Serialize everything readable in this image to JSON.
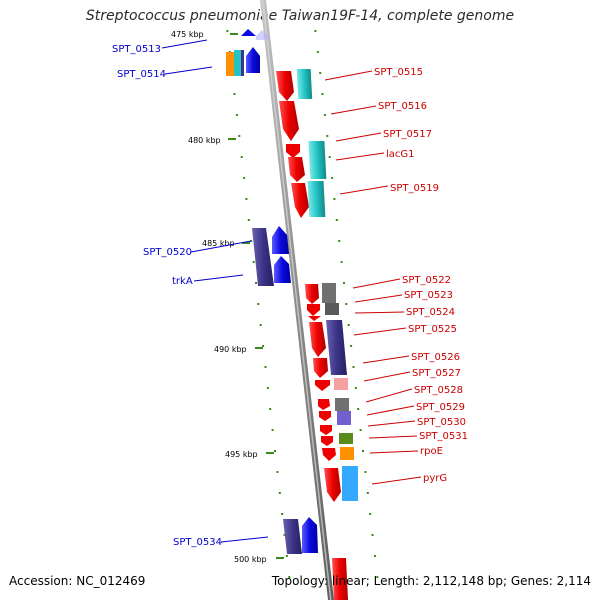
{
  "title": "Streptococcus pneumoniae Taiwan19F-14, complete genome",
  "accession": "Accession: NC_012469",
  "stats": "Topology: linear; Length: 2,112,148 bp; Genes: 2,114",
  "colors": {
    "backbone": "#8c8c8c",
    "tick": "#3a8a1a",
    "left_label": "#0000cc",
    "right_label": "#cc0000",
    "gene_red": "#ee0000",
    "gene_cyan": "#22c4c4",
    "gene_navy": "#3b3488",
    "gene_blue": "#0a0ae0",
    "gene_orange": "#ff9000",
    "gene_grey": "#707070",
    "gene_pink": "#f4a0a0",
    "gene_violet": "#7060d0",
    "gene_olive": "#5a8a1a",
    "gene_sky": "#33aaff"
  },
  "scale_labels": [
    "475 kbp",
    "480 kbp",
    "485 kbp",
    "490 kbp",
    "495 kbp",
    "500 kbp"
  ],
  "left_labels": [
    "SPT_0513",
    "SPT_0514",
    "SPT_0520",
    "trkA",
    "SPT_0534"
  ],
  "right_labels": [
    "SPT_0515",
    "SPT_0516",
    "SPT_0517",
    "lacG1",
    "SPT_0519",
    "SPT_0522",
    "SPT_0523",
    "SPT_0524",
    "SPT_0525",
    "SPT_0526",
    "SPT_0527",
    "SPT_0528",
    "SPT_0529",
    "SPT_0530",
    "SPT_0531",
    "rpoE",
    "pyrG"
  ]
}
